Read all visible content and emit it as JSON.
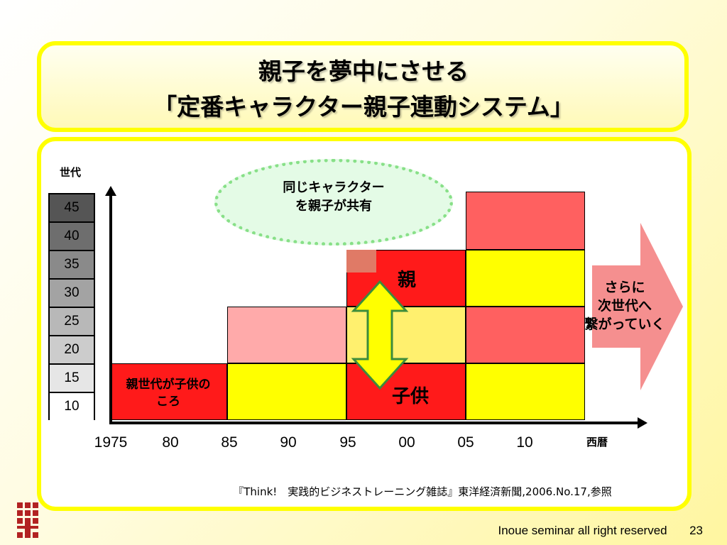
{
  "title": {
    "line1": "親子を夢中にさせる",
    "line2": "「定番キャラクター親子連動システム」"
  },
  "diagram": {
    "generation_axis_label": "世代",
    "generation_values": [
      "45",
      "40",
      "35",
      "30",
      "25",
      "20",
      "15",
      "10"
    ],
    "x_axis_label": "西暦",
    "x_ticks": [
      "1975",
      "80",
      "85",
      "90",
      "95",
      "00",
      "05",
      "10"
    ],
    "child_era_label_line1": "親世代が子供の",
    "child_era_label_line2": "ころ",
    "parent_label": "親",
    "child_label": "子供",
    "bubble_line1": "同じキャラクター",
    "bubble_line2": "を親子が共有",
    "next_line1": "さらに",
    "next_line2": "次世代へ",
    "next_line3": "繋がっていく",
    "colors": {
      "red": "#ff1a1a",
      "yellow": "#ffff00",
      "pink": "#ffaaaa",
      "salmon": "#ff6060",
      "arrow": "#f08080"
    }
  },
  "citation": "『Think!　実践的ビジネストレーニング雑誌』東洋経済新聞,2006.No.17,参照",
  "footer": {
    "text": "Inoue seminar all right  reserved",
    "page": "23"
  }
}
